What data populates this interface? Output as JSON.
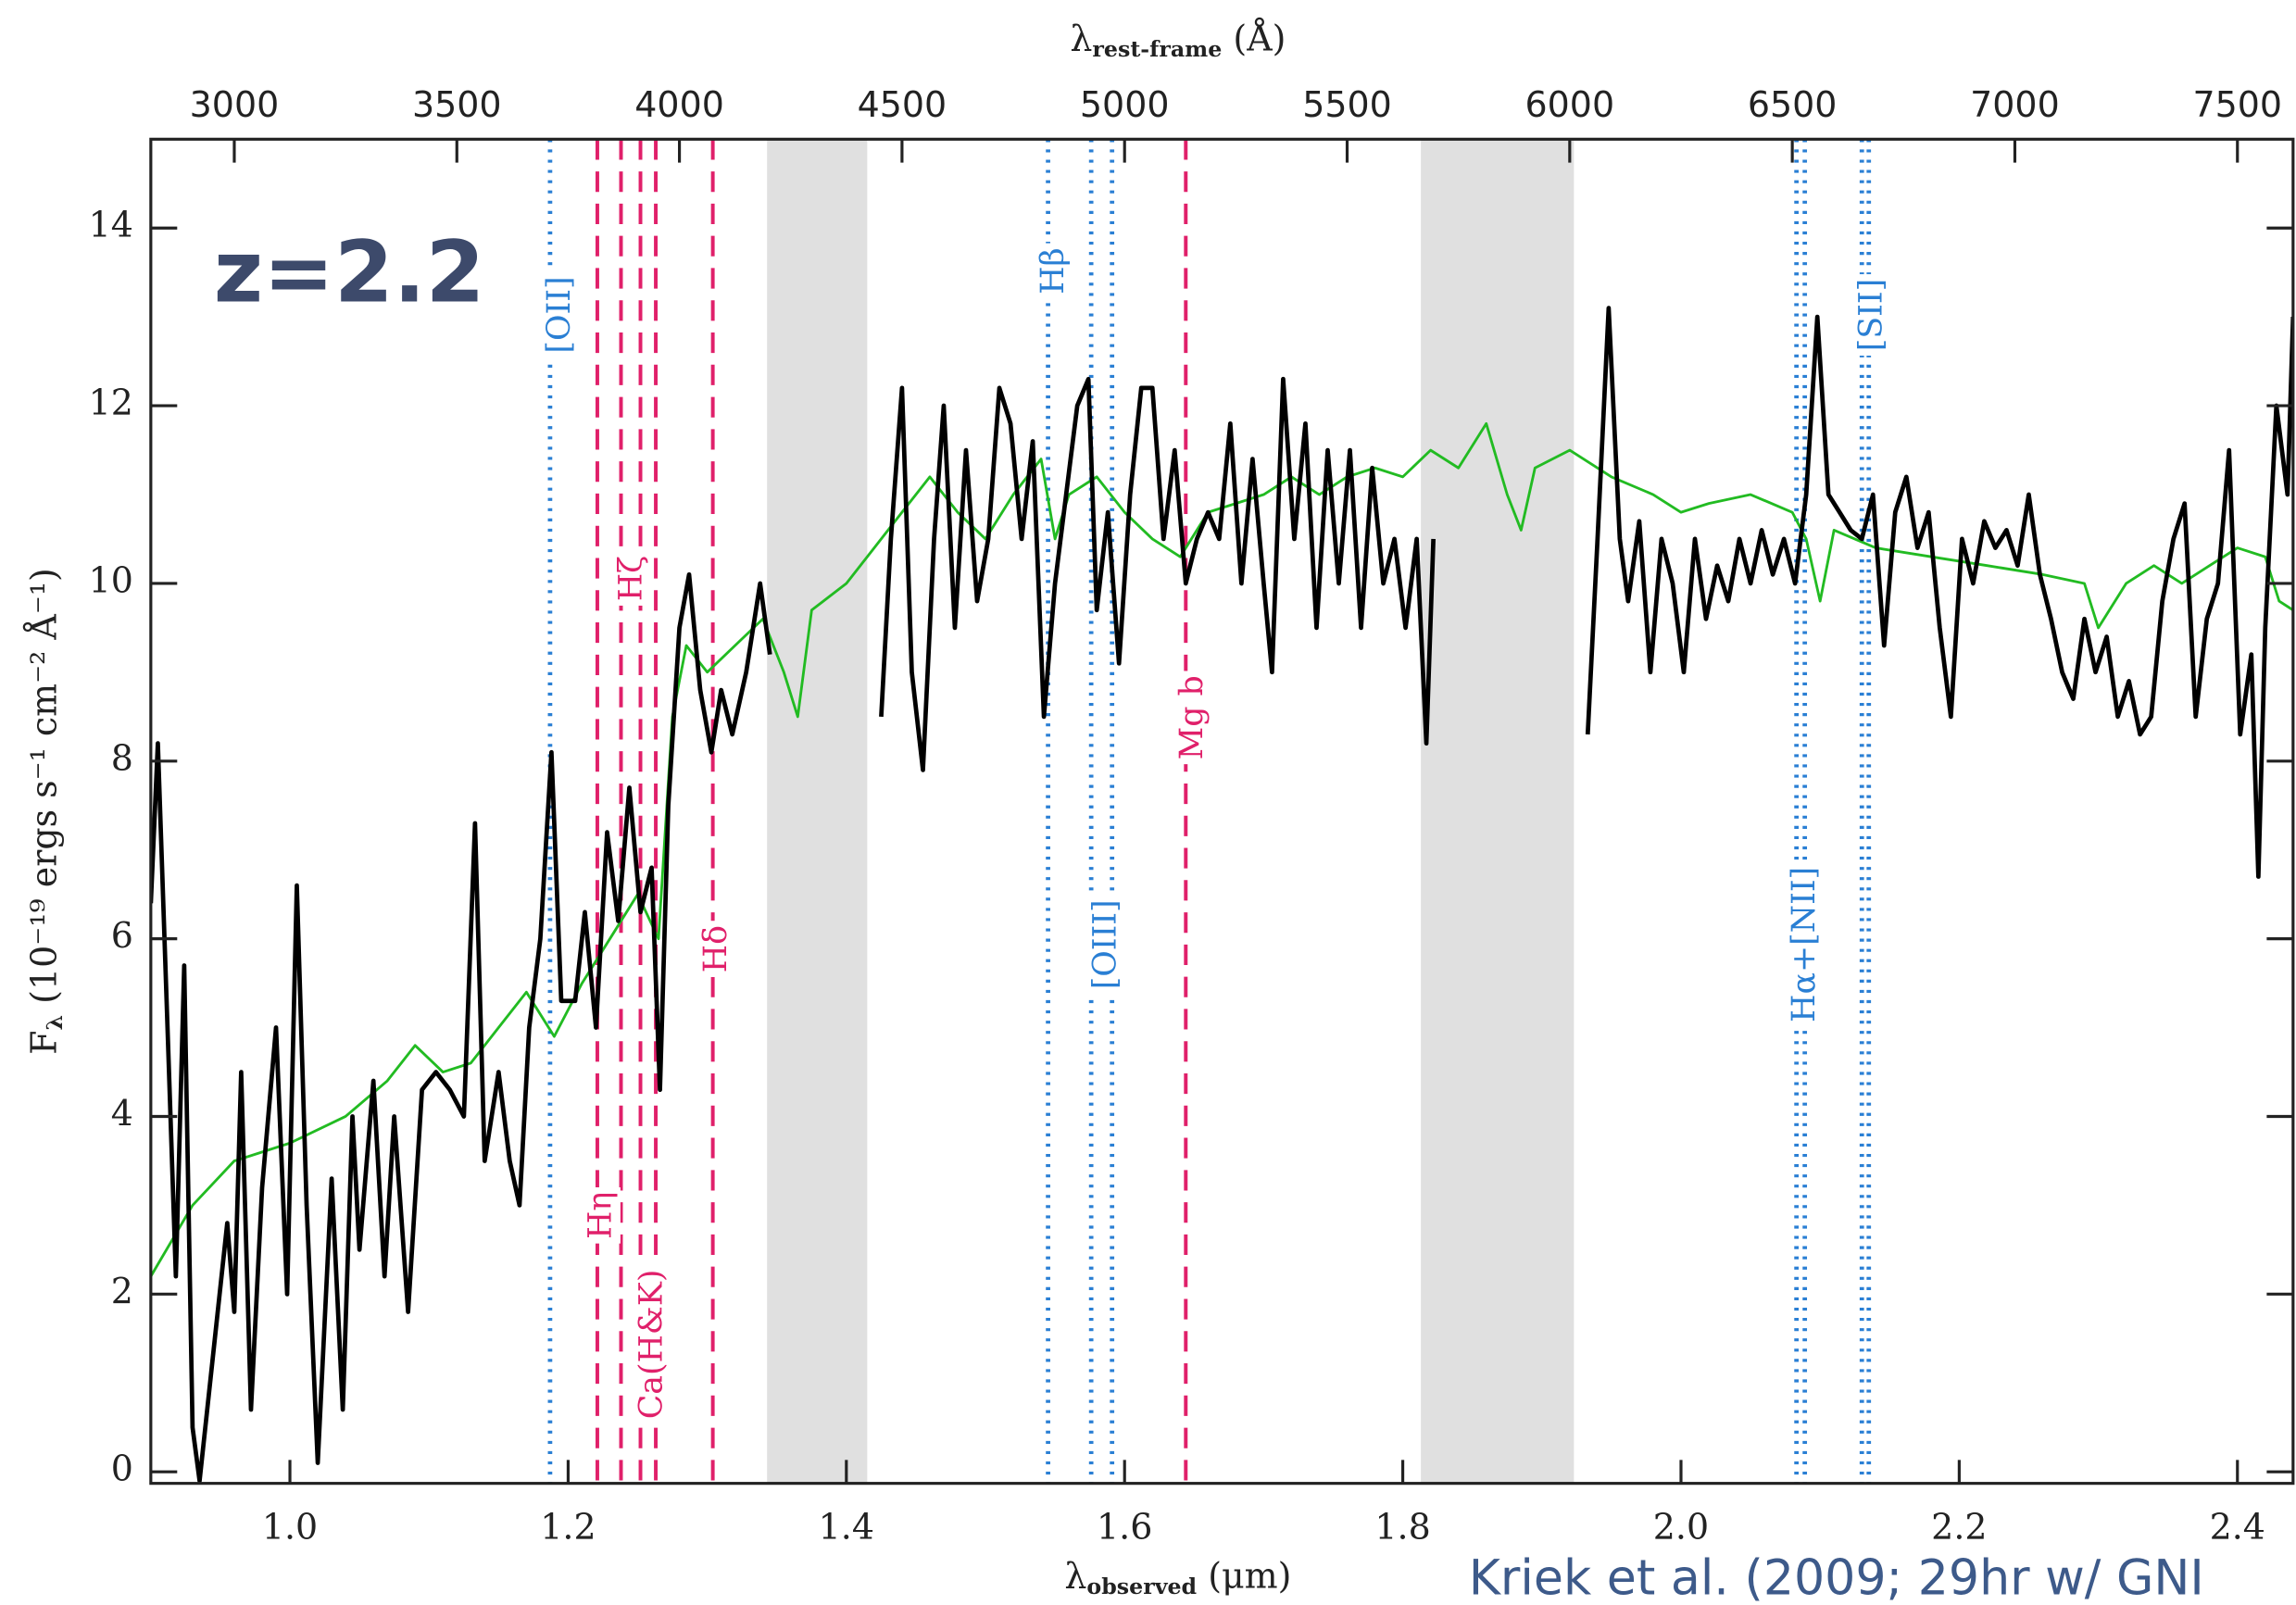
{
  "chart_data": {
    "type": "line",
    "annotations": [
      "z=2.2",
      "Kriek et al. (2009; 29hr w/ GNI"
    ],
    "xlabel": {
      "symbol": "λ",
      "subscript": "observed",
      "unit": "(μm)"
    },
    "x2label": {
      "symbol": "λ",
      "subscript": "rest-frame",
      "unit": "(Å)"
    },
    "ylabel": {
      "symbol": "F",
      "subscript": "λ",
      "unit": "(10⁻¹⁹ ergs s⁻¹ cm⁻² Å⁻¹)"
    },
    "xlim": [
      0.9,
      2.44
    ],
    "xticks": [
      {
        "value": 1,
        "label": "1.0"
      },
      1.2,
      1.4,
      1.6,
      1.8,
      {
        "value": 2,
        "label": "2.0"
      },
      2.2,
      2.4
    ],
    "x2lim": [
      2812.5,
      7625
    ],
    "x2ticks": [
      3000,
      3500,
      4000,
      4500,
      5000,
      5500,
      6000,
      6500,
      7000,
      7500
    ],
    "ylim": [
      -0.13,
      15
    ],
    "yticks": [
      0,
      2,
      4,
      6,
      8,
      10,
      12,
      14
    ],
    "bands": [
      [
        1.343,
        1.415
      ],
      [
        1.813,
        1.923
      ]
    ],
    "band_color": "#e0e0e0",
    "features": [
      {
        "label": "[OII]",
        "x": [
          1.187
        ],
        "color": "#2a7fd4",
        "style": "dotted"
      },
      {
        "label": "Hη",
        "x": [
          1.221
        ],
        "color": "#e0206a",
        "style": "dashed"
      },
      {
        "label": "Hζ",
        "x": [
          1.238
        ],
        "color": "#e0206a",
        "style": "dashed"
      },
      {
        "label": "Ca(H&K)",
        "x": [
          1.252,
          1.263
        ],
        "color": "#e0206a",
        "style": "dashed"
      },
      {
        "label": "Hδ",
        "x": [
          1.304
        ],
        "color": "#e0206a",
        "style": "dashed"
      },
      {
        "label": "Hβ",
        "x": [
          1.545
        ],
        "color": "#2a7fd4",
        "style": "dotted"
      },
      {
        "label": "[OIII]",
        "x": [
          1.576,
          1.591
        ],
        "color": "#2a7fd4",
        "style": "dotted"
      },
      {
        "label": "Mg b",
        "x": [
          1.644
        ],
        "color": "#e0206a",
        "style": "dashed"
      },
      {
        "label": "Hα+[NII]",
        "x": [
          2.083,
          2.089
        ],
        "color": "#2a7fd4",
        "style": "dotted"
      },
      {
        "label": "[SII]",
        "x": [
          2.13,
          2.135
        ],
        "color": "#2a7fd4",
        "style": "dotted"
      }
    ],
    "series": [
      {
        "color": "#22bb22",
        "x": [
          0.9,
          0.93,
          0.96,
          1.0,
          1.04,
          1.07,
          1.09,
          1.11,
          1.13,
          1.15,
          1.17,
          1.19,
          1.21,
          1.23,
          1.25,
          1.265,
          1.275,
          1.285,
          1.3,
          1.32,
          1.34,
          1.355,
          1.365,
          1.375,
          1.4,
          1.42,
          1.44,
          1.46,
          1.48,
          1.5,
          1.52,
          1.54,
          1.55,
          1.56,
          1.58,
          1.6,
          1.62,
          1.64,
          1.66,
          1.68,
          1.7,
          1.72,
          1.74,
          1.76,
          1.78,
          1.8,
          1.82,
          1.84,
          1.86,
          1.875,
          1.885,
          1.895,
          1.92,
          1.95,
          1.98,
          2.0,
          2.02,
          2.05,
          2.08,
          2.09,
          2.1,
          2.11,
          2.14,
          2.18,
          2.22,
          2.26,
          2.29,
          2.3,
          2.32,
          2.34,
          2.36,
          2.38,
          2.4,
          2.42,
          2.43,
          2.44
        ],
        "values": [
          2.2,
          3.0,
          3.5,
          3.7,
          4.0,
          4.4,
          4.8,
          4.5,
          4.6,
          5.0,
          5.4,
          4.9,
          5.5,
          6.0,
          6.5,
          6.0,
          8.5,
          9.3,
          9.0,
          9.3,
          9.6,
          9.0,
          8.5,
          9.7,
          10.0,
          10.4,
          10.8,
          11.2,
          10.8,
          10.5,
          11.0,
          11.4,
          10.5,
          11.0,
          11.2,
          10.8,
          10.5,
          10.3,
          10.8,
          10.9,
          11.0,
          11.2,
          11.0,
          11.2,
          11.3,
          11.2,
          11.5,
          11.3,
          11.8,
          11.0,
          10.6,
          11.3,
          11.5,
          11.2,
          11.0,
          10.8,
          10.9,
          11.0,
          10.8,
          10.5,
          9.8,
          10.6,
          10.4,
          10.3,
          10.2,
          10.1,
          10.0,
          9.5,
          10.0,
          10.2,
          10.0,
          10.2,
          10.4,
          10.3,
          9.8,
          9.7
        ]
      },
      {
        "color": "#000000",
        "x": [
          0.9,
          0.905,
          0.912,
          0.918,
          0.924,
          0.93,
          0.935,
          0.955,
          0.96,
          0.965,
          0.972,
          0.98,
          0.99,
          0.998,
          1.005,
          1.012,
          1.02,
          1.03,
          1.038,
          1.045,
          1.05,
          1.06,
          1.068,
          1.075,
          1.085,
          1.095,
          1.105,
          1.115,
          1.125,
          1.133,
          1.14,
          1.15,
          1.158,
          1.165,
          1.172,
          1.18,
          1.188,
          1.195,
          1.205,
          1.212,
          1.22,
          1.228,
          1.236,
          1.244,
          1.252,
          1.26,
          1.266,
          1.272,
          1.28,
          1.287,
          1.295,
          1.303,
          1.31,
          1.318,
          1.328,
          1.338,
          1.345,
          1.38,
          1.425,
          1.432,
          1.44,
          1.447,
          1.455,
          1.463,
          1.47,
          1.478,
          1.486,
          1.494,
          1.502,
          1.51,
          1.518,
          1.526,
          1.534,
          1.542,
          1.55,
          1.558,
          1.566,
          1.574,
          1.58,
          1.588,
          1.596,
          1.604,
          1.612,
          1.62,
          1.628,
          1.636,
          1.644,
          1.652,
          1.66,
          1.668,
          1.676,
          1.684,
          1.692,
          1.7,
          1.706,
          1.714,
          1.722,
          1.73,
          1.738,
          1.746,
          1.754,
          1.762,
          1.77,
          1.778,
          1.786,
          1.794,
          1.802,
          1.81,
          1.817,
          1.822,
          1.88,
          1.933,
          1.94,
          1.948,
          1.956,
          1.962,
          1.97,
          1.978,
          1.986,
          1.994,
          2.002,
          2.01,
          2.018,
          2.026,
          2.034,
          2.042,
          2.05,
          2.058,
          2.066,
          2.074,
          2.082,
          2.09,
          2.098,
          2.106,
          2.114,
          2.122,
          2.13,
          2.138,
          2.146,
          2.154,
          2.162,
          2.17,
          2.178,
          2.186,
          2.194,
          2.202,
          2.21,
          2.218,
          2.226,
          2.234,
          2.242,
          2.25,
          2.258,
          2.266,
          2.274,
          2.282,
          2.29,
          2.298,
          2.306,
          2.314,
          2.322,
          2.33,
          2.338,
          2.346,
          2.354,
          2.362,
          2.37,
          2.378,
          2.386,
          2.394,
          2.402,
          2.41,
          2.415,
          2.42,
          2.428,
          2.436,
          2.44
        ],
        "values": [
          6.4,
          8.2,
          5.0,
          2.2,
          5.7,
          0.5,
          -0.1,
          2.8,
          1.8,
          4.5,
          0.7,
          3.2,
          5.0,
          2.0,
          6.6,
          3.0,
          0.1,
          3.3,
          0.7,
          4.0,
          2.5,
          4.4,
          2.2,
          4.0,
          1.8,
          4.3,
          4.5,
          4.3,
          4.0,
          7.3,
          3.5,
          4.5,
          3.5,
          3.0,
          5.0,
          6.0,
          8.1,
          5.3,
          5.3,
          6.3,
          5.0,
          7.2,
          6.2,
          7.7,
          6.3,
          6.8,
          4.3,
          7.5,
          9.5,
          10.1,
          8.8,
          8.1,
          8.8,
          8.3,
          9.0,
          10.0,
          9.2,
          null,
          8.5,
          10.5,
          12.2,
          9.0,
          7.9,
          10.5,
          12.0,
          9.5,
          11.5,
          9.8,
          10.5,
          12.2,
          11.8,
          10.5,
          11.6,
          8.5,
          10.0,
          11.0,
          12.0,
          12.3,
          9.7,
          10.8,
          9.1,
          11.0,
          12.2,
          12.2,
          10.5,
          11.5,
          10.0,
          10.5,
          10.8,
          10.5,
          11.8,
          10.0,
          11.4,
          10.0,
          9.0,
          12.3,
          10.5,
          11.8,
          9.5,
          11.5,
          10.0,
          11.5,
          9.5,
          11.3,
          10.0,
          10.5,
          9.5,
          10.5,
          8.2,
          10.5,
          null,
          8.3,
          10.5,
          13.1,
          10.5,
          9.8,
          10.7,
          9.0,
          10.5,
          10.0,
          9.0,
          10.5,
          9.6,
          10.2,
          9.8,
          10.5,
          10.0,
          10.6,
          10.1,
          10.5,
          10.0,
          11.0,
          13.0,
          11.0,
          10.8,
          10.6,
          10.5,
          11.0,
          9.3,
          10.8,
          11.2,
          10.4,
          10.8,
          9.5,
          8.5,
          10.5,
          10.0,
          10.7,
          10.4,
          10.6,
          10.2,
          11.0,
          10.1,
          9.6,
          9.0,
          8.7,
          9.6,
          9.0,
          9.4,
          8.5,
          8.9,
          8.3,
          8.5,
          9.8,
          10.5,
          10.9,
          8.5,
          9.6,
          10.0,
          11.5,
          8.3,
          9.2,
          6.7,
          9.5,
          12.0,
          11.0,
          13.0
        ]
      }
    ]
  }
}
